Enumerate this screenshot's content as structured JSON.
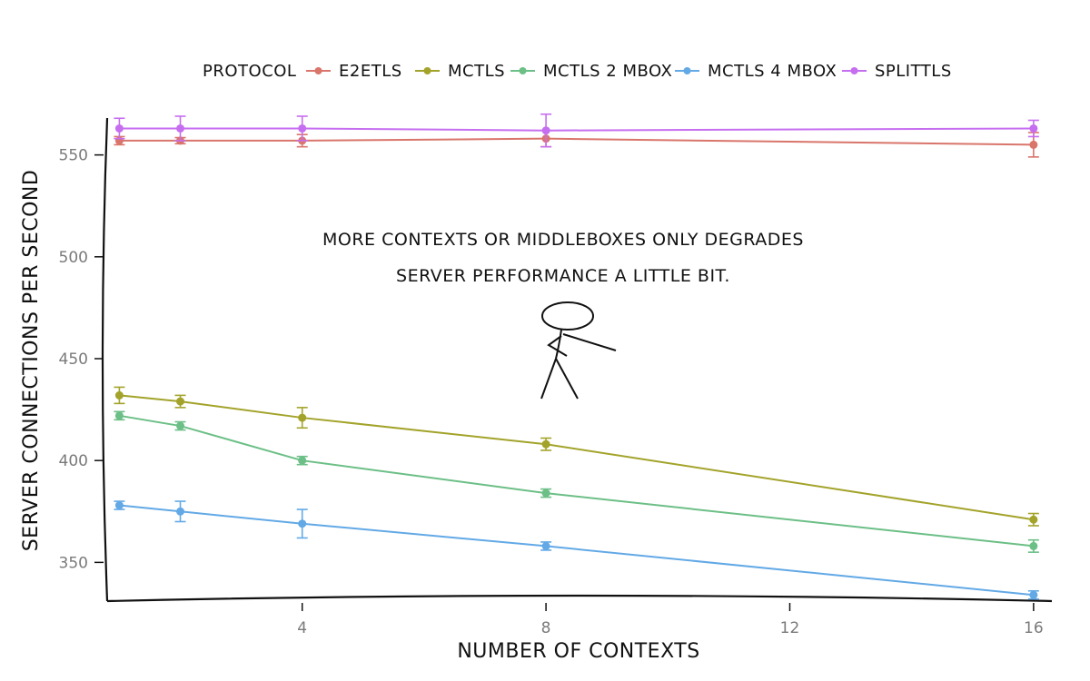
{
  "chart_data": {
    "type": "line",
    "title": "",
    "xlabel": "NUMBER OF CONTEXTS",
    "ylabel": "SERVER CONNECTIONS PER SECOND",
    "x": [
      1,
      2,
      4,
      8,
      16
    ],
    "xticks": [
      "4",
      "8",
      "12",
      "16"
    ],
    "xlim": [
      0.8,
      16.3
    ],
    "yticks": [
      "350",
      "400",
      "450",
      "500",
      "550"
    ],
    "ylim": [
      331,
      569
    ],
    "grid": false,
    "legend": {
      "title": "PROTOCOL",
      "position": "top"
    },
    "annotation": [
      "MORE CONTEXTS OR MIDDLEBOXES ONLY DEGRADES",
      "SERVER PERFORMANCE A LITTLE BIT."
    ],
    "series": [
      {
        "name": "E2ETLS",
        "color": "#d9756b",
        "values": [
          557,
          557,
          557,
          558,
          555
        ],
        "errors": [
          2,
          1.5,
          3,
          4,
          6
        ]
      },
      {
        "name": "MCTLS",
        "color": "#a3a32b",
        "values": [
          432,
          429,
          421,
          408,
          371
        ],
        "errors": [
          4,
          3,
          5,
          3,
          3
        ]
      },
      {
        "name": "MCTLS 2 MBOX",
        "color": "#6cbf86",
        "values": [
          422,
          417,
          400,
          384,
          358
        ],
        "errors": [
          2,
          2,
          2,
          2,
          3
        ]
      },
      {
        "name": "MCTLS 4 MBOX",
        "color": "#62a9e6",
        "values": [
          378,
          375,
          369,
          358,
          334
        ],
        "errors": [
          2,
          5,
          7,
          2,
          2
        ]
      },
      {
        "name": "SPLITTLS",
        "color": "#c66ef0",
        "values": [
          563,
          563,
          563,
          562,
          563
        ],
        "errors": [
          5,
          6,
          6,
          8,
          4
        ]
      }
    ]
  }
}
